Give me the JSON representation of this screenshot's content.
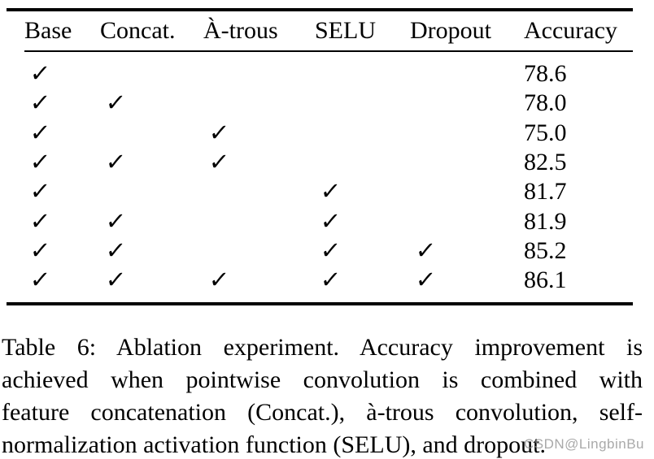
{
  "table": {
    "columns": [
      "Base",
      "Concat.",
      "À-trous",
      "SELU",
      "Dropout",
      "Accuracy"
    ],
    "check_char": "✓",
    "rows": [
      {
        "checks": [
          true,
          false,
          false,
          false,
          false
        ],
        "accuracy": "78.6"
      },
      {
        "checks": [
          true,
          true,
          false,
          false,
          false
        ],
        "accuracy": "78.0"
      },
      {
        "checks": [
          true,
          false,
          true,
          false,
          false
        ],
        "accuracy": "75.0"
      },
      {
        "checks": [
          true,
          true,
          true,
          false,
          false
        ],
        "accuracy": "82.5"
      },
      {
        "checks": [
          true,
          false,
          false,
          true,
          false
        ],
        "accuracy": "81.7"
      },
      {
        "checks": [
          true,
          true,
          false,
          true,
          false
        ],
        "accuracy": "81.9"
      },
      {
        "checks": [
          true,
          true,
          false,
          true,
          true
        ],
        "accuracy": "85.2"
      },
      {
        "checks": [
          true,
          true,
          true,
          true,
          true
        ],
        "accuracy": "86.1"
      }
    ]
  },
  "caption": {
    "lines": [
      "Table 6: Ablation experiment. Accuracy improvement is",
      "achieved when pointwise convolution is combined with",
      "feature concatenation (Concat.), à-trous convolution, self-",
      "normalization activation function (SELU), and dropout."
    ]
  },
  "watermark": {
    "text": "CSDN@LingbinBu"
  }
}
